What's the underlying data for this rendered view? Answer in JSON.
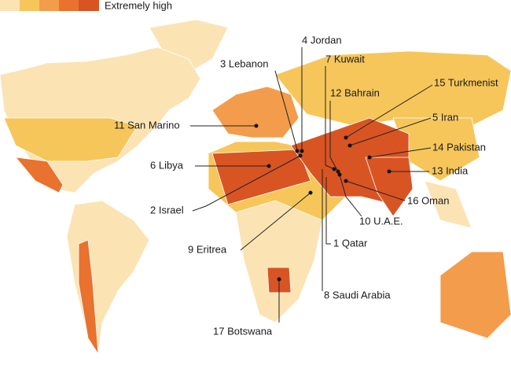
{
  "legend": {
    "label": "Extremely high"
  },
  "labels": [
    "4 Jordan",
    "3 Lebanon",
    "7 Kuwait",
    "12 Bahrain",
    "15 Turkmenist",
    "11 San Marino",
    "5 Iran",
    "14 Pakistan",
    "6 Libya",
    "13 India",
    "16 Oman",
    "2 Israel",
    "10 U.A.E.",
    "1 Qatar",
    "9 Eritrea",
    "8 Saudi Arabia",
    "17 Botswana"
  ]
}
